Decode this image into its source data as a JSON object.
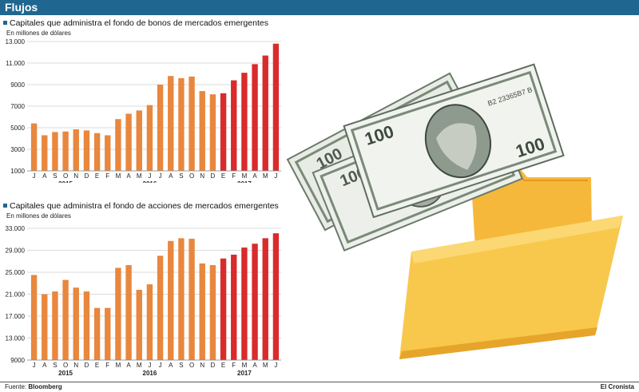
{
  "header": {
    "title": "Flujos"
  },
  "footer": {
    "source_label": "Fuente:",
    "source_name": "Bloomberg",
    "brand": "El Cronista"
  },
  "illustration": {
    "description_icon": "money-folder-icon",
    "bill_text": "B2 23365B7 B"
  },
  "colors": {
    "header_bg": "#1f6790",
    "bar_light": "#e8873e",
    "bar_dark": "#d92b2b",
    "grid": "#cfcfcf"
  },
  "chart_data": [
    {
      "type": "bar",
      "title": "Capitales que administra el fondo de bonos de mercados emergentes",
      "subtitle": "En millones de dólares",
      "categories": [
        "J",
        "A",
        "S",
        "O",
        "N",
        "D",
        "E",
        "F",
        "M",
        "A",
        "M",
        "J",
        "J",
        "A",
        "S",
        "O",
        "N",
        "D",
        "E",
        "F",
        "M",
        "A",
        "M",
        "J"
      ],
      "years": [
        {
          "label": "2015",
          "index": 3
        },
        {
          "label": "2016",
          "index": 11
        },
        {
          "label": "2017",
          "index": 20
        }
      ],
      "values": [
        5400,
        4300,
        4600,
        4650,
        4850,
        4750,
        4500,
        4300,
        5800,
        6300,
        6600,
        7100,
        9000,
        9800,
        9600,
        9750,
        8400,
        8100,
        8200,
        9400,
        10100,
        10900,
        11700,
        12800
      ],
      "highlight_from_index": 18,
      "yticks": [
        1000,
        3000,
        5000,
        7000,
        9000,
        11000,
        13000
      ],
      "ytick_labels": [
        "1000",
        "3000",
        "5000",
        "7000",
        "9000",
        "11.000",
        "13.000"
      ],
      "ylim": [
        1000,
        13000
      ],
      "grid": true
    },
    {
      "type": "bar",
      "title": "Capitales que administra el fondo de acciones de mercados emergentes",
      "subtitle": "En millones de dólares",
      "categories": [
        "J",
        "A",
        "S",
        "O",
        "N",
        "D",
        "E",
        "F",
        "M",
        "A",
        "M",
        "J",
        "J",
        "A",
        "S",
        "O",
        "N",
        "D",
        "E",
        "F",
        "M",
        "A",
        "M",
        "J"
      ],
      "years": [
        {
          "label": "2015",
          "index": 3
        },
        {
          "label": "2016",
          "index": 11
        },
        {
          "label": "2017",
          "index": 20
        }
      ],
      "values": [
        24500,
        21000,
        21500,
        23600,
        22200,
        21500,
        18500,
        18500,
        25800,
        26300,
        21800,
        22800,
        28000,
        30700,
        31200,
        31100,
        26600,
        26300,
        27500,
        28200,
        29500,
        30200,
        31200,
        32100
      ],
      "highlight_from_index": 18,
      "yticks": [
        9000,
        13000,
        17000,
        21000,
        25000,
        29000,
        33000
      ],
      "ytick_labels": [
        "9000",
        "13.000",
        "17.000",
        "21.000",
        "25.000",
        "29.000",
        "33.000"
      ],
      "ylim": [
        9000,
        33000
      ],
      "grid": true
    }
  ]
}
